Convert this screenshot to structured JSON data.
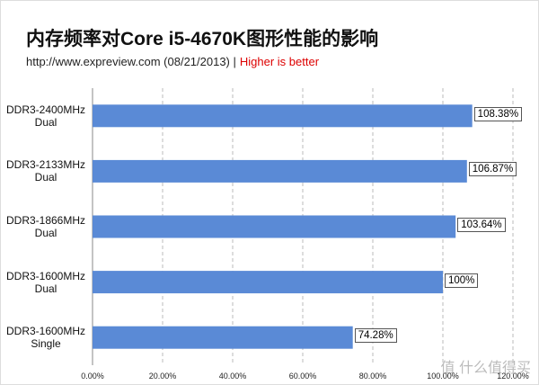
{
  "chart_data": {
    "type": "bar",
    "orientation": "horizontal",
    "title": "内存频率对Core i5-4670K图形性能的影响",
    "subtitle": "http://www.expreview.com (08/21/2013) |",
    "note": "Higher is better",
    "watermark": "值 什么值得买",
    "categories": [
      "DDR3-2400MHz\nDual",
      "DDR3-2133MHz\nDual",
      "DDR3-1866MHz\nDual",
      "DDR3-1600MHz\nDual",
      "DDR3-1600MHz\nSingle"
    ],
    "values": [
      108.38,
      106.87,
      103.64,
      100,
      74.28
    ],
    "value_labels": [
      "108.38%",
      "106.87%",
      "103.64%",
      "100%",
      "74.28%"
    ],
    "color": "#5a8ad6",
    "xlim": [
      0,
      120
    ],
    "xticks": [
      {
        "value": 0,
        "label": "0.00%"
      },
      {
        "value": 20,
        "label": "20.00%"
      },
      {
        "value": 40,
        "label": "40.00%"
      },
      {
        "value": 60,
        "label": "60.00%"
      },
      {
        "value": 80,
        "label": "80.00%"
      },
      {
        "value": 100,
        "label": "100.00%"
      },
      {
        "value": 120,
        "label": "120.00%"
      }
    ],
    "grid": true
  }
}
